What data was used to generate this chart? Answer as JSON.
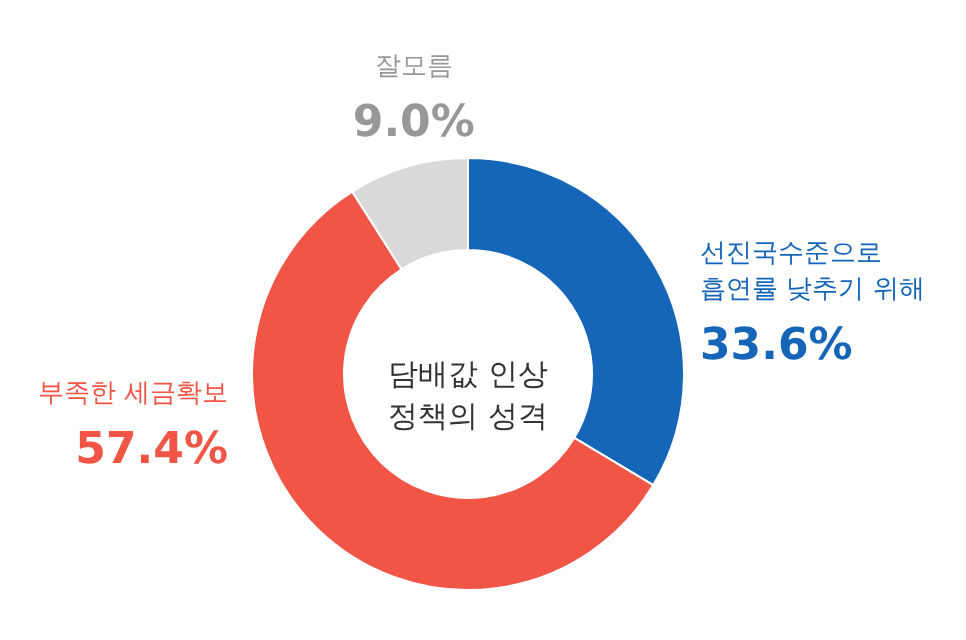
{
  "chart_data": {
    "type": "donut",
    "title": "담배값 인상\n정책의 성격",
    "categories": [
      "선진국수준으로\n흡연률 낮추기 위해",
      "부족한 세금확보",
      "잘모름"
    ],
    "values": [
      33.6,
      57.4,
      9.0
    ],
    "value_labels": [
      "33.6%",
      "57.4%",
      "9.0%"
    ],
    "colors": [
      "#1565b8",
      "#f05545",
      "#d9d9d9"
    ]
  }
}
